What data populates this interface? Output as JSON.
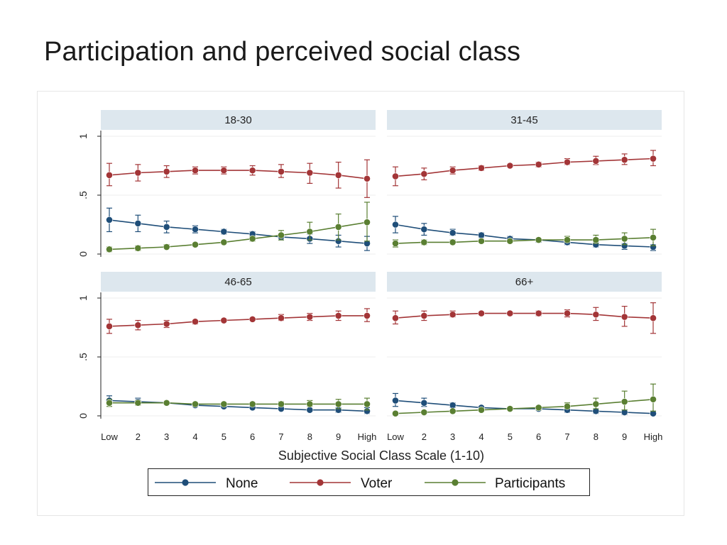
{
  "slide": {
    "title": "Participation and perceived social class"
  },
  "chart_data": {
    "type": "line",
    "title": "",
    "xlabel": "Subjective Social Class Scale (1-10)",
    "ylabel": "",
    "categories": [
      "Low",
      "2",
      "3",
      "4",
      "5",
      "6",
      "7",
      "8",
      "9",
      "High"
    ],
    "ylim": [
      0,
      1
    ],
    "yticks": [
      0,
      0.5,
      1
    ],
    "ytick_labels": [
      "0",
      ".5",
      "1"
    ],
    "grid": true,
    "legend_position": "bottom",
    "colors": {
      "None": "#1f4e79",
      "Voter": "#a33537",
      "Participants": "#5a7f32",
      "panel_header": "#dde7ee",
      "frame": "#e6e6e6"
    },
    "series_names": [
      "None",
      "Voter",
      "Participants"
    ],
    "panels": [
      {
        "label": "18-30",
        "series": [
          {
            "name": "None",
            "values": [
              0.29,
              0.26,
              0.23,
              0.21,
              0.19,
              0.17,
              0.145,
              0.13,
              0.11,
              0.09
            ],
            "ci": [
              [
                0.19,
                0.39
              ],
              [
                0.19,
                0.33
              ],
              [
                0.18,
                0.28
              ],
              [
                0.18,
                0.24
              ],
              [
                0.17,
                0.21
              ],
              [
                0.15,
                0.19
              ],
              [
                0.12,
                0.17
              ],
              [
                0.09,
                0.17
              ],
              [
                0.06,
                0.16
              ],
              [
                0.03,
                0.15
              ]
            ]
          },
          {
            "name": "Voter",
            "values": [
              0.67,
              0.69,
              0.7,
              0.71,
              0.71,
              0.71,
              0.7,
              0.69,
              0.67,
              0.64
            ],
            "ci": [
              [
                0.58,
                0.77
              ],
              [
                0.62,
                0.76
              ],
              [
                0.65,
                0.75
              ],
              [
                0.68,
                0.74
              ],
              [
                0.68,
                0.74
              ],
              [
                0.67,
                0.75
              ],
              [
                0.65,
                0.76
              ],
              [
                0.6,
                0.77
              ],
              [
                0.56,
                0.78
              ],
              [
                0.48,
                0.8
              ]
            ]
          },
          {
            "name": "Participants",
            "values": [
              0.04,
              0.05,
              0.06,
              0.08,
              0.1,
              0.13,
              0.16,
              0.19,
              0.23,
              0.27
            ],
            "ci": [
              [
                0.02,
                0.06
              ],
              [
                0.03,
                0.07
              ],
              [
                0.05,
                0.08
              ],
              [
                0.07,
                0.09
              ],
              [
                0.09,
                0.11
              ],
              [
                0.11,
                0.15
              ],
              [
                0.12,
                0.2
              ],
              [
                0.12,
                0.27
              ],
              [
                0.12,
                0.34
              ],
              [
                0.11,
                0.44
              ]
            ]
          }
        ]
      },
      {
        "label": "31-45",
        "series": [
          {
            "name": "None",
            "values": [
              0.25,
              0.21,
              0.18,
              0.16,
              0.13,
              0.12,
              0.1,
              0.08,
              0.07,
              0.06
            ],
            "ci": [
              [
                0.18,
                0.32
              ],
              [
                0.16,
                0.26
              ],
              [
                0.16,
                0.21
              ],
              [
                0.14,
                0.18
              ],
              [
                0.12,
                0.15
              ],
              [
                0.1,
                0.13
              ],
              [
                0.08,
                0.12
              ],
              [
                0.06,
                0.1
              ],
              [
                0.04,
                0.09
              ],
              [
                0.03,
                0.08
              ]
            ]
          },
          {
            "name": "Voter",
            "values": [
              0.66,
              0.68,
              0.71,
              0.73,
              0.75,
              0.76,
              0.78,
              0.79,
              0.8,
              0.81
            ],
            "ci": [
              [
                0.58,
                0.74
              ],
              [
                0.63,
                0.73
              ],
              [
                0.68,
                0.74
              ],
              [
                0.71,
                0.75
              ],
              [
                0.74,
                0.76
              ],
              [
                0.74,
                0.78
              ],
              [
                0.76,
                0.81
              ],
              [
                0.76,
                0.83
              ],
              [
                0.76,
                0.85
              ],
              [
                0.75,
                0.88
              ]
            ]
          },
          {
            "name": "Participants",
            "values": [
              0.09,
              0.1,
              0.1,
              0.11,
              0.11,
              0.12,
              0.12,
              0.12,
              0.13,
              0.14
            ],
            "ci": [
              [
                0.06,
                0.12
              ],
              [
                0.08,
                0.12
              ],
              [
                0.09,
                0.12
              ],
              [
                0.1,
                0.12
              ],
              [
                0.1,
                0.12
              ],
              [
                0.11,
                0.13
              ],
              [
                0.1,
                0.15
              ],
              [
                0.09,
                0.16
              ],
              [
                0.08,
                0.18
              ],
              [
                0.07,
                0.21
              ]
            ]
          }
        ]
      },
      {
        "label": "46-65",
        "series": [
          {
            "name": "None",
            "values": [
              0.13,
              0.12,
              0.11,
              0.09,
              0.08,
              0.07,
              0.06,
              0.05,
              0.05,
              0.04
            ],
            "ci": [
              [
                0.1,
                0.17
              ],
              [
                0.1,
                0.15
              ],
              [
                0.1,
                0.12
              ],
              [
                0.08,
                0.1
              ],
              [
                0.07,
                0.09
              ],
              [
                0.06,
                0.08
              ],
              [
                0.05,
                0.07
              ],
              [
                0.04,
                0.06
              ],
              [
                0.03,
                0.07
              ],
              [
                0.02,
                0.07
              ]
            ]
          },
          {
            "name": "Voter",
            "values": [
              0.76,
              0.77,
              0.78,
              0.8,
              0.81,
              0.82,
              0.83,
              0.84,
              0.85,
              0.85
            ],
            "ci": [
              [
                0.7,
                0.82
              ],
              [
                0.73,
                0.81
              ],
              [
                0.75,
                0.81
              ],
              [
                0.78,
                0.81
              ],
              [
                0.8,
                0.82
              ],
              [
                0.81,
                0.83
              ],
              [
                0.81,
                0.86
              ],
              [
                0.81,
                0.87
              ],
              [
                0.81,
                0.89
              ],
              [
                0.8,
                0.91
              ]
            ]
          },
          {
            "name": "Participants",
            "values": [
              0.11,
              0.11,
              0.11,
              0.1,
              0.1,
              0.1,
              0.1,
              0.1,
              0.1,
              0.1
            ],
            "ci": [
              [
                0.08,
                0.14
              ],
              [
                0.09,
                0.13
              ],
              [
                0.1,
                0.12
              ],
              [
                0.09,
                0.11
              ],
              [
                0.09,
                0.11
              ],
              [
                0.09,
                0.11
              ],
              [
                0.08,
                0.12
              ],
              [
                0.08,
                0.13
              ],
              [
                0.06,
                0.14
              ],
              [
                0.05,
                0.15
              ]
            ]
          }
        ]
      },
      {
        "label": "66+",
        "series": [
          {
            "name": "None",
            "values": [
              0.13,
              0.11,
              0.09,
              0.07,
              0.06,
              0.06,
              0.05,
              0.04,
              0.03,
              0.02
            ],
            "ci": [
              [
                0.08,
                0.19
              ],
              [
                0.08,
                0.15
              ],
              [
                0.07,
                0.11
              ],
              [
                0.06,
                0.08
              ],
              [
                0.05,
                0.07
              ],
              [
                0.05,
                0.07
              ],
              [
                0.03,
                0.06
              ],
              [
                0.02,
                0.05
              ],
              [
                0.01,
                0.05
              ],
              [
                0.01,
                0.04
              ]
            ]
          },
          {
            "name": "Voter",
            "values": [
              0.83,
              0.85,
              0.86,
              0.87,
              0.87,
              0.87,
              0.87,
              0.86,
              0.84,
              0.83
            ],
            "ci": [
              [
                0.78,
                0.89
              ],
              [
                0.81,
                0.89
              ],
              [
                0.84,
                0.89
              ],
              [
                0.86,
                0.88
              ],
              [
                0.86,
                0.88
              ],
              [
                0.85,
                0.89
              ],
              [
                0.84,
                0.9
              ],
              [
                0.81,
                0.92
              ],
              [
                0.76,
                0.93
              ],
              [
                0.7,
                0.96
              ]
            ]
          },
          {
            "name": "Participants",
            "values": [
              0.02,
              0.03,
              0.04,
              0.05,
              0.06,
              0.07,
              0.08,
              0.1,
              0.12,
              0.14
            ],
            "ci": [
              [
                0.01,
                0.03
              ],
              [
                0.02,
                0.04
              ],
              [
                0.03,
                0.05
              ],
              [
                0.04,
                0.06
              ],
              [
                0.05,
                0.07
              ],
              [
                0.05,
                0.08
              ],
              [
                0.06,
                0.11
              ],
              [
                0.06,
                0.15
              ],
              [
                0.05,
                0.21
              ],
              [
                0.04,
                0.27
              ]
            ]
          }
        ]
      }
    ]
  }
}
